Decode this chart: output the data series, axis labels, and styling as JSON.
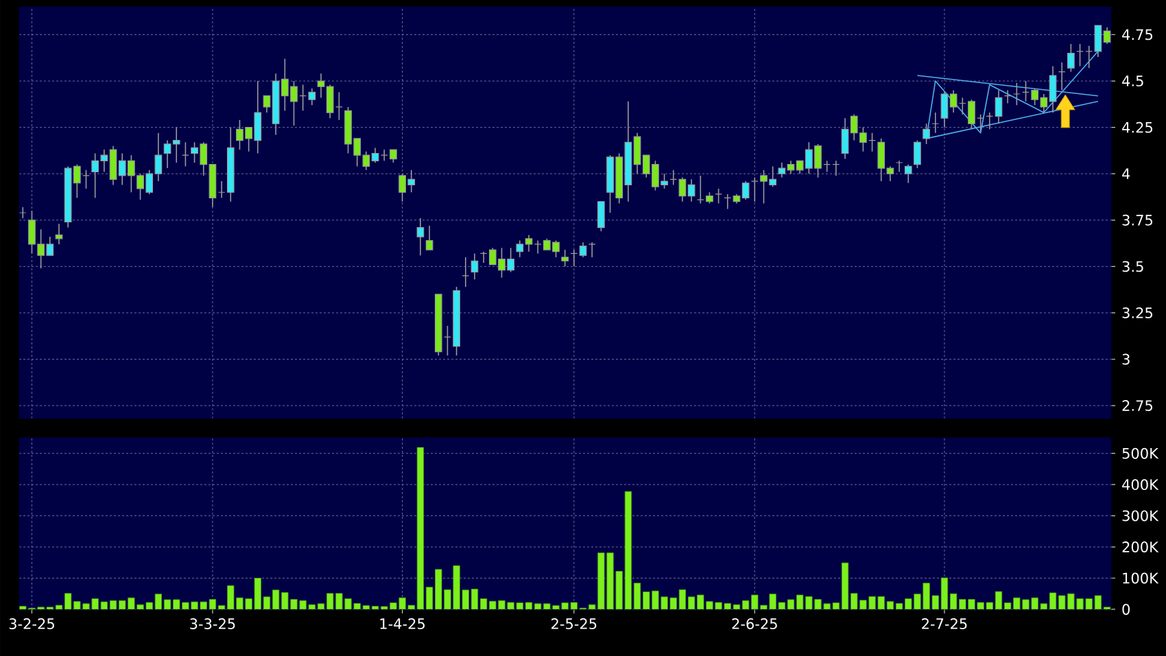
{
  "chart_data": [
    {
      "type": "candlestick",
      "categories": [
        null,
        null,
        null,
        null,
        null,
        null,
        null,
        null,
        null,
        null,
        null,
        null,
        null,
        null,
        null,
        null,
        null,
        null,
        null,
        null,
        null,
        null,
        null,
        null,
        null,
        null,
        null,
        null,
        null,
        null,
        null,
        null,
        null,
        null,
        null,
        null,
        null,
        null,
        null,
        null,
        null,
        null,
        null,
        null,
        null,
        null,
        null,
        null,
        null,
        null,
        null,
        null,
        null,
        null,
        null,
        null,
        null,
        null,
        null,
        null,
        null,
        null,
        null,
        null,
        null,
        null,
        null,
        null,
        null,
        null,
        null,
        null,
        null,
        null,
        null,
        null,
        null,
        null,
        null,
        null,
        null,
        null,
        null,
        null,
        null,
        null,
        null,
        null,
        null,
        null,
        null,
        null,
        null,
        null,
        null,
        null,
        null,
        null,
        null,
        null,
        null,
        null,
        null,
        null,
        null,
        null,
        null,
        null,
        null,
        null,
        null,
        null,
        null,
        null,
        null,
        null,
        null,
        null,
        null,
        null,
        null
      ],
      "ohlc": [
        [
          3.79,
          3.82,
          3.76,
          3.79
        ],
        [
          3.75,
          3.8,
          3.57,
          3.62
        ],
        [
          3.62,
          3.7,
          3.49,
          3.56
        ],
        [
          3.56,
          3.66,
          3.56,
          3.62
        ],
        [
          3.67,
          3.73,
          3.62,
          3.65
        ],
        [
          3.74,
          4.04,
          3.71,
          4.03
        ],
        [
          4.04,
          4.05,
          3.87,
          3.95
        ],
        [
          3.99,
          4.02,
          3.92,
          3.99
        ],
        [
          4.01,
          4.11,
          3.87,
          4.07
        ],
        [
          4.07,
          4.13,
          4.01,
          4.1
        ],
        [
          4.13,
          4.15,
          3.94,
          3.97
        ],
        [
          3.99,
          4.11,
          3.94,
          4.07
        ],
        [
          4.07,
          4.1,
          3.9,
          3.99
        ],
        [
          3.99,
          4.0,
          3.86,
          3.92
        ],
        [
          3.9,
          4.02,
          3.89,
          4.0
        ],
        [
          4.0,
          4.22,
          3.96,
          4.1
        ],
        [
          4.11,
          4.18,
          4.03,
          4.16
        ],
        [
          4.16,
          4.25,
          4.06,
          4.18
        ],
        [
          4.1,
          4.17,
          4.04,
          4.1
        ],
        [
          4.11,
          4.17,
          4.06,
          4.14
        ],
        [
          4.16,
          4.17,
          3.99,
          4.05
        ],
        [
          4.05,
          4.05,
          3.82,
          3.87
        ],
        [
          3.9,
          3.96,
          3.87,
          3.9
        ],
        [
          3.9,
          4.25,
          3.85,
          4.14
        ],
        [
          4.24,
          4.29,
          4.13,
          4.18
        ],
        [
          4.25,
          4.25,
          4.12,
          4.19
        ],
        [
          4.18,
          4.5,
          4.11,
          4.33
        ],
        [
          4.42,
          4.42,
          4.33,
          4.36
        ],
        [
          4.27,
          4.54,
          4.21,
          4.5
        ],
        [
          4.51,
          4.62,
          4.34,
          4.42
        ],
        [
          4.47,
          4.5,
          4.26,
          4.39
        ],
        [
          4.42,
          4.48,
          4.34,
          4.42
        ],
        [
          4.4,
          4.46,
          4.37,
          4.44
        ],
        [
          4.5,
          4.54,
          4.41,
          4.47
        ],
        [
          4.47,
          4.48,
          4.3,
          4.33
        ],
        [
          4.36,
          4.44,
          4.29,
          4.36
        ],
        [
          4.34,
          4.36,
          4.11,
          4.16
        ],
        [
          4.19,
          4.19,
          4.04,
          4.1
        ],
        [
          4.1,
          4.12,
          4.02,
          4.04
        ],
        [
          4.07,
          4.14,
          4.06,
          4.11
        ],
        [
          4.1,
          4.13,
          4.07,
          4.1
        ],
        [
          4.13,
          4.13,
          4.06,
          4.08
        ],
        [
          3.99,
          4.0,
          3.85,
          3.9
        ],
        [
          3.94,
          4.02,
          3.9,
          3.97
        ],
        [
          3.66,
          3.76,
          3.56,
          3.71
        ],
        [
          3.64,
          3.72,
          3.59,
          3.59
        ],
        [
          3.35,
          3.35,
          3.02,
          3.04
        ],
        [
          3.12,
          3.18,
          3.02,
          3.12
        ],
        [
          3.07,
          3.39,
          3.02,
          3.37
        ],
        [
          3.45,
          3.55,
          3.39,
          3.45
        ],
        [
          3.47,
          3.57,
          3.43,
          3.53
        ],
        [
          3.57,
          3.58,
          3.52,
          3.57
        ],
        [
          3.59,
          3.6,
          3.51,
          3.51
        ],
        [
          3.54,
          3.6,
          3.44,
          3.48
        ],
        [
          3.48,
          3.6,
          3.47,
          3.54
        ],
        [
          3.58,
          3.64,
          3.55,
          3.62
        ],
        [
          3.65,
          3.67,
          3.58,
          3.62
        ],
        [
          3.62,
          3.64,
          3.57,
          3.62
        ],
        [
          3.64,
          3.65,
          3.59,
          3.59
        ],
        [
          3.63,
          3.64,
          3.55,
          3.58
        ],
        [
          3.55,
          3.59,
          3.5,
          3.53
        ],
        [
          3.57,
          3.59,
          3.5,
          3.57
        ],
        [
          3.56,
          3.63,
          3.55,
          3.61
        ],
        [
          3.62,
          3.63,
          3.55,
          3.62
        ],
        [
          3.71,
          3.85,
          3.69,
          3.85
        ],
        [
          3.9,
          4.1,
          3.79,
          4.09
        ],
        [
          4.09,
          4.11,
          3.84,
          3.87
        ],
        [
          3.94,
          4.39,
          3.85,
          4.17
        ],
        [
          4.2,
          4.22,
          4.0,
          4.05
        ],
        [
          4.1,
          4.1,
          3.98,
          4.0
        ],
        [
          4.05,
          4.07,
          3.91,
          3.93
        ],
        [
          3.94,
          4.0,
          3.92,
          3.96
        ],
        [
          3.97,
          4.02,
          3.94,
          3.97
        ],
        [
          3.97,
          3.98,
          3.85,
          3.88
        ],
        [
          3.88,
          3.97,
          3.85,
          3.94
        ],
        [
          3.86,
          3.99,
          3.84,
          3.86
        ],
        [
          3.88,
          3.9,
          3.84,
          3.85
        ],
        [
          3.89,
          3.92,
          3.84,
          3.89
        ],
        [
          3.87,
          3.89,
          3.81,
          3.87
        ],
        [
          3.88,
          3.89,
          3.84,
          3.85
        ],
        [
          3.87,
          3.96,
          3.86,
          3.95
        ],
        [
          3.96,
          3.98,
          3.85,
          3.96
        ],
        [
          3.99,
          4.02,
          3.84,
          3.96
        ],
        [
          3.94,
          4.04,
          3.93,
          3.97
        ],
        [
          4.0,
          4.06,
          3.98,
          4.03
        ],
        [
          4.05,
          4.07,
          4.0,
          4.02
        ],
        [
          4.07,
          4.07,
          4.0,
          4.02
        ],
        [
          4.03,
          4.17,
          4.0,
          4.13
        ],
        [
          4.15,
          4.16,
          3.98,
          4.03
        ],
        [
          4.05,
          4.07,
          4.01,
          4.05
        ],
        [
          4.05,
          4.07,
          3.99,
          4.05
        ],
        [
          4.11,
          4.3,
          4.08,
          4.24
        ],
        [
          4.31,
          4.32,
          4.18,
          4.22
        ],
        [
          4.22,
          4.25,
          4.12,
          4.17
        ],
        [
          4.18,
          4.22,
          4.12,
          4.18
        ],
        [
          4.17,
          4.19,
          3.96,
          4.03
        ],
        [
          4.03,
          4.04,
          3.96,
          4.0
        ],
        [
          4.06,
          4.07,
          4.01,
          4.06
        ],
        [
          4.0,
          4.05,
          3.95,
          4.04
        ],
        [
          4.05,
          4.18,
          4.03,
          4.17
        ],
        [
          4.19,
          4.27,
          4.16,
          4.24
        ],
        [
          4.27,
          4.33,
          4.22,
          4.27
        ],
        [
          4.3,
          4.44,
          4.25,
          4.43
        ],
        [
          4.43,
          4.45,
          4.33,
          4.36
        ],
        [
          4.38,
          4.41,
          4.32,
          4.38
        ],
        [
          4.39,
          4.4,
          4.24,
          4.27
        ],
        [
          4.3,
          4.32,
          4.23,
          4.3
        ],
        [
          4.31,
          4.33,
          4.24,
          4.31
        ],
        [
          4.31,
          4.45,
          4.27,
          4.41
        ],
        [
          4.42,
          4.45,
          4.38,
          4.42
        ],
        [
          4.43,
          4.49,
          4.37,
          4.43
        ],
        [
          4.44,
          4.5,
          4.39,
          4.44
        ],
        [
          4.45,
          4.46,
          4.37,
          4.4
        ],
        [
          4.41,
          4.43,
          4.33,
          4.36
        ],
        [
          4.39,
          4.58,
          4.33,
          4.53
        ],
        [
          4.55,
          4.6,
          4.45,
          4.55
        ],
        [
          4.57,
          4.7,
          4.55,
          4.65
        ],
        [
          4.66,
          4.7,
          4.58,
          4.66
        ],
        [
          4.66,
          4.69,
          4.57,
          4.66
        ],
        [
          4.66,
          4.8,
          4.63,
          4.8
        ],
        [
          4.77,
          4.79,
          4.7,
          4.71
        ]
      ],
      "colors": [
        "#a0a0a0",
        "#7ce81c",
        "#7ce81c",
        "#33e6f5",
        "#7ce81c",
        "#33e6f5",
        "#7ce81c",
        "#a0a0a0",
        "#33e6f5",
        "#33e6f5",
        "#7ce81c",
        "#33e6f5",
        "#7ce81c",
        "#7ce81c",
        "#33e6f5",
        "#33e6f5",
        "#33e6f5",
        "#33e6f5",
        "#a0a0a0",
        "#33e6f5",
        "#7ce81c",
        "#7ce81c",
        "#a0a0a0",
        "#33e6f5",
        "#7ce81c",
        "#7ce81c",
        "#33e6f5",
        "#7ce81c",
        "#33e6f5",
        "#7ce81c",
        "#7ce81c",
        "#a0a0a0",
        "#33e6f5",
        "#7ce81c",
        "#7ce81c",
        "#a0a0a0",
        "#7ce81c",
        "#7ce81c",
        "#7ce81c",
        "#33e6f5",
        "#a0a0a0",
        "#7ce81c",
        "#7ce81c",
        "#33e6f5",
        "#33e6f5",
        "#7ce81c",
        "#7ce81c",
        "#a0a0a0",
        "#33e6f5",
        "#a0a0a0",
        "#33e6f5",
        "#a0a0a0",
        "#7ce81c",
        "#7ce81c",
        "#33e6f5",
        "#33e6f5",
        "#7ce81c",
        "#a0a0a0",
        "#7ce81c",
        "#7ce81c",
        "#7ce81c",
        "#a0a0a0",
        "#33e6f5",
        "#a0a0a0",
        "#33e6f5",
        "#33e6f5",
        "#7ce81c",
        "#33e6f5",
        "#7ce81c",
        "#7ce81c",
        "#7ce81c",
        "#33e6f5",
        "#a0a0a0",
        "#7ce81c",
        "#33e6f5",
        "#a0a0a0",
        "#7ce81c",
        "#a0a0a0",
        "#a0a0a0",
        "#7ce81c",
        "#33e6f5",
        "#a0a0a0",
        "#7ce81c",
        "#33e6f5",
        "#33e6f5",
        "#7ce81c",
        "#7ce81c",
        "#33e6f5",
        "#7ce81c",
        "#a0a0a0",
        "#a0a0a0",
        "#33e6f5",
        "#7ce81c",
        "#7ce81c",
        "#a0a0a0",
        "#7ce81c",
        "#7ce81c",
        "#a0a0a0",
        "#33e6f5",
        "#33e6f5",
        "#33e6f5",
        "#a0a0a0",
        "#33e6f5",
        "#7ce81c",
        "#a0a0a0",
        "#7ce81c",
        "#a0a0a0",
        "#a0a0a0",
        "#33e6f5",
        "#a0a0a0",
        "#a0a0a0",
        "#a0a0a0",
        "#7ce81c",
        "#7ce81c",
        "#33e6f5",
        "#a0a0a0",
        "#33e6f5",
        "#a0a0a0",
        "#a0a0a0",
        "#33e6f5",
        "#7ce81c"
      ],
      "series": [
        {
          "type": "line",
          "color": "#4fb0f0",
          "values": [
            null,
            null,
            null,
            null,
            null,
            null,
            null,
            null,
            null,
            null,
            null,
            null,
            null,
            null,
            null,
            null,
            null,
            null,
            null,
            null,
            null,
            null,
            null,
            null,
            null,
            null,
            null,
            null,
            null,
            null,
            null,
            null,
            null,
            null,
            null,
            null,
            null,
            null,
            null,
            null,
            null,
            null,
            null,
            null,
            null,
            null,
            null,
            null,
            null,
            null,
            null,
            null,
            null,
            null,
            null,
            null,
            null,
            null,
            null,
            null,
            null,
            null,
            null,
            null,
            null,
            null,
            null,
            null,
            null,
            null,
            null,
            null,
            null,
            null,
            null,
            null,
            null,
            null,
            null,
            null,
            null,
            null,
            null,
            null,
            null,
            null,
            null,
            null,
            null,
            null,
            null,
            null,
            null,
            null,
            null,
            null,
            null,
            null,
            null,
            4.53,
            null,
            null,
            null,
            null,
            null,
            null,
            null,
            null,
            null,
            null,
            null,
            null,
            null,
            null,
            null,
            null,
            null,
            null,
            null,
            4.42,
            null
          ]
        },
        {
          "type": "line",
          "color": "#4fb0f0",
          "values": [
            null,
            null,
            null,
            null,
            null,
            null,
            null,
            null,
            null,
            null,
            null,
            null,
            null,
            null,
            null,
            null,
            null,
            null,
            null,
            null,
            null,
            null,
            null,
            null,
            null,
            null,
            null,
            null,
            null,
            null,
            null,
            null,
            null,
            null,
            null,
            null,
            null,
            null,
            null,
            null,
            null,
            null,
            null,
            null,
            null,
            null,
            null,
            null,
            null,
            null,
            null,
            null,
            null,
            null,
            null,
            null,
            null,
            null,
            null,
            null,
            null,
            null,
            null,
            null,
            null,
            null,
            null,
            null,
            null,
            null,
            null,
            null,
            null,
            null,
            null,
            null,
            null,
            null,
            null,
            null,
            null,
            null,
            null,
            null,
            null,
            null,
            null,
            null,
            null,
            null,
            null,
            null,
            null,
            null,
            null,
            null,
            null,
            null,
            null,
            null,
            4.19,
            null,
            null,
            null,
            null,
            null,
            null,
            null,
            null,
            null,
            null,
            null,
            null,
            null,
            null,
            null,
            null,
            null,
            null,
            4.39,
            null
          ]
        },
        {
          "type": "line",
          "color": "#4fb0f0",
          "values": [
            null,
            null,
            null,
            null,
            null,
            null,
            null,
            null,
            null,
            null,
            null,
            null,
            null,
            null,
            null,
            null,
            null,
            null,
            null,
            null,
            null,
            null,
            null,
            null,
            null,
            null,
            null,
            null,
            null,
            null,
            null,
            null,
            null,
            null,
            null,
            null,
            null,
            null,
            null,
            null,
            null,
            null,
            null,
            null,
            null,
            null,
            null,
            null,
            null,
            null,
            null,
            null,
            null,
            null,
            null,
            null,
            null,
            null,
            null,
            null,
            null,
            null,
            null,
            null,
            null,
            null,
            null,
            null,
            null,
            null,
            null,
            null,
            null,
            null,
            null,
            null,
            null,
            null,
            null,
            null,
            null,
            null,
            null,
            null,
            null,
            null,
            null,
            null,
            null,
            null,
            null,
            null,
            null,
            null,
            null,
            null,
            null,
            null,
            null,
            null,
            4.19,
            4.5,
            null,
            null,
            null,
            null,
            4.22,
            4.48,
            null,
            null,
            null,
            null,
            null,
            4.33,
            null,
            null,
            null,
            null,
            null,
            4.66,
            null
          ]
        }
      ],
      "ylim": [
        2.68,
        4.9
      ],
      "yticks": [
        2.75,
        3,
        3.25,
        3.5,
        3.75,
        4,
        4.25,
        4.5,
        4.75
      ],
      "grid": true,
      "tick_labels": "y"
    },
    {
      "type": "bar",
      "categories": [
        null,
        "3-2-25",
        null,
        null,
        null,
        null,
        null,
        null,
        null,
        null,
        null,
        null,
        null,
        null,
        null,
        null,
        null,
        null,
        null,
        null,
        null,
        "3-3-25",
        null,
        null,
        null,
        null,
        null,
        null,
        null,
        null,
        null,
        null,
        null,
        null,
        null,
        null,
        null,
        null,
        null,
        null,
        null,
        null,
        "1-4-25",
        null,
        null,
        null,
        null,
        null,
        null,
        null,
        null,
        null,
        null,
        null,
        null,
        null,
        null,
        null,
        null,
        null,
        null,
        "2-5-25",
        null,
        null,
        null,
        null,
        null,
        null,
        null,
        null,
        null,
        null,
        null,
        null,
        null,
        null,
        null,
        null,
        null,
        null,
        null,
        "2-6-25",
        null,
        null,
        null,
        null,
        null,
        null,
        null,
        null,
        null,
        null,
        null,
        null,
        null,
        null,
        null,
        null,
        null,
        null,
        null,
        null,
        "2-7-25",
        null,
        null,
        null,
        null,
        null,
        null,
        null,
        null,
        null,
        null,
        null,
        null,
        null,
        null,
        null,
        null,
        null,
        null
      ],
      "values": [
        10000,
        4000,
        7000,
        7000,
        13000,
        51000,
        25000,
        18000,
        34000,
        24000,
        28000,
        28000,
        37000,
        15000,
        22000,
        49000,
        31000,
        31000,
        22000,
        24000,
        24000,
        32000,
        12000,
        76000,
        37000,
        34000,
        100000,
        40000,
        62000,
        54000,
        32000,
        28000,
        15000,
        18000,
        51000,
        51000,
        34000,
        19000,
        12000,
        10000,
        9000,
        21000,
        37000,
        13000,
        519000,
        71000,
        128000,
        63000,
        140000,
        62000,
        65000,
        34000,
        26000,
        28000,
        22000,
        21000,
        22000,
        18000,
        18000,
        12000,
        21000,
        22000,
        4000,
        15000,
        181000,
        181000,
        122000,
        378000,
        84000,
        56000,
        59000,
        40000,
        37000,
        63000,
        40000,
        46000,
        25000,
        22000,
        19000,
        15000,
        28000,
        46000,
        13000,
        49000,
        22000,
        31000,
        46000,
        41000,
        32000,
        18000,
        21000,
        149000,
        51000,
        29000,
        41000,
        41000,
        25000,
        19000,
        34000,
        49000,
        84000,
        44000,
        101000,
        50000,
        32000,
        32000,
        22000,
        22000,
        57000,
        21000,
        37000,
        31000,
        37000,
        18000,
        53000,
        44000,
        50000,
        34000,
        34000,
        44000,
        7000
      ],
      "color": "#7cf01c",
      "ylim": [
        0,
        550000
      ],
      "yticks": [
        0,
        {
          "value": 100000,
          "label": "100K"
        },
        {
          "value": 200000,
          "label": "200K"
        },
        {
          "value": 300000,
          "label": "300K"
        },
        {
          "value": 400000,
          "label": "400K"
        },
        {
          "value": 500000,
          "label": "500K"
        }
      ],
      "grid": true
    }
  ]
}
